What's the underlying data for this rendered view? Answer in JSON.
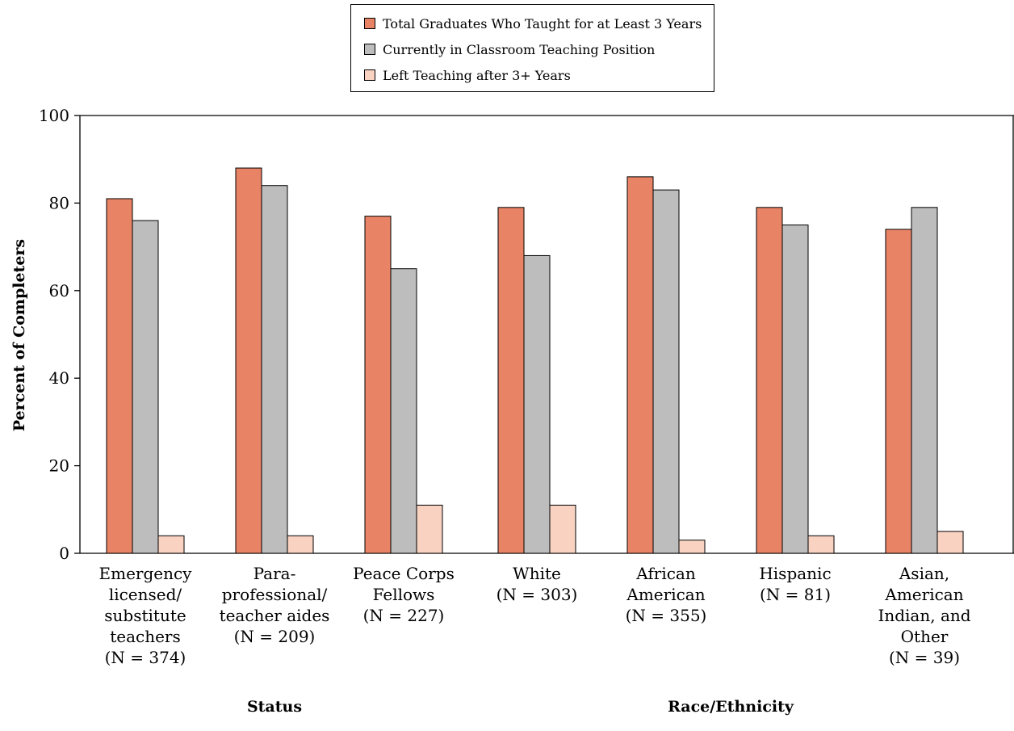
{
  "legend": [
    {
      "label": "Total Graduates Who Taught for at Least 3 Years",
      "color": "#e98366"
    },
    {
      "label": "Currently in Classroom Teaching Position",
      "color": "#bdbdbd"
    },
    {
      "label": "Left Teaching after 3+ Years",
      "color": "#f9d2c2"
    }
  ],
  "chart_data": {
    "type": "bar",
    "ylabel": "Percent of Completers",
    "ylim": [
      0,
      100
    ],
    "yticks": [
      0,
      20,
      40,
      60,
      80,
      100
    ],
    "categories": [
      {
        "name": "Emergency licensed/ substitute teachers",
        "lines": "Emergency\nlicensed/\nsubstitute\nteachers",
        "n": "(N = 374)"
      },
      {
        "name": "Para-professional/ teacher aides",
        "lines": "Para-\nprofessional/\nteacher aides",
        "n": "(N = 209)"
      },
      {
        "name": "Peace Corps Fellows",
        "lines": "Peace Corps\nFellows",
        "n": "(N = 227)"
      },
      {
        "name": "White",
        "lines": "White",
        "n": "(N = 303)"
      },
      {
        "name": "African American",
        "lines": "African\nAmerican",
        "n": "(N = 355)"
      },
      {
        "name": "Hispanic",
        "lines": "Hispanic",
        "n": "(N = 81)"
      },
      {
        "name": "Asian, American Indian, and Other",
        "lines": "Asian,\nAmerican\nIndian, and\nOther",
        "n": "(N = 39)"
      }
    ],
    "series": [
      {
        "name": "Total Graduates Who Taught for at Least 3 Years",
        "color": "#e98366",
        "values": [
          81,
          88,
          77,
          79,
          86,
          79,
          74
        ]
      },
      {
        "name": "Currently in Classroom Teaching Position",
        "color": "#bdbdbd",
        "values": [
          76,
          84,
          65,
          68,
          83,
          75,
          79
        ]
      },
      {
        "name": "Left Teaching after 3+ Years",
        "color": "#f9d2c2",
        "values": [
          4,
          4,
          11,
          11,
          3,
          4,
          5
        ]
      }
    ],
    "groups": [
      {
        "title": "Status",
        "categories": [
          0,
          1,
          2
        ]
      },
      {
        "title": "Race/Ethnicity",
        "categories": [
          3,
          4,
          5,
          6
        ]
      }
    ]
  }
}
